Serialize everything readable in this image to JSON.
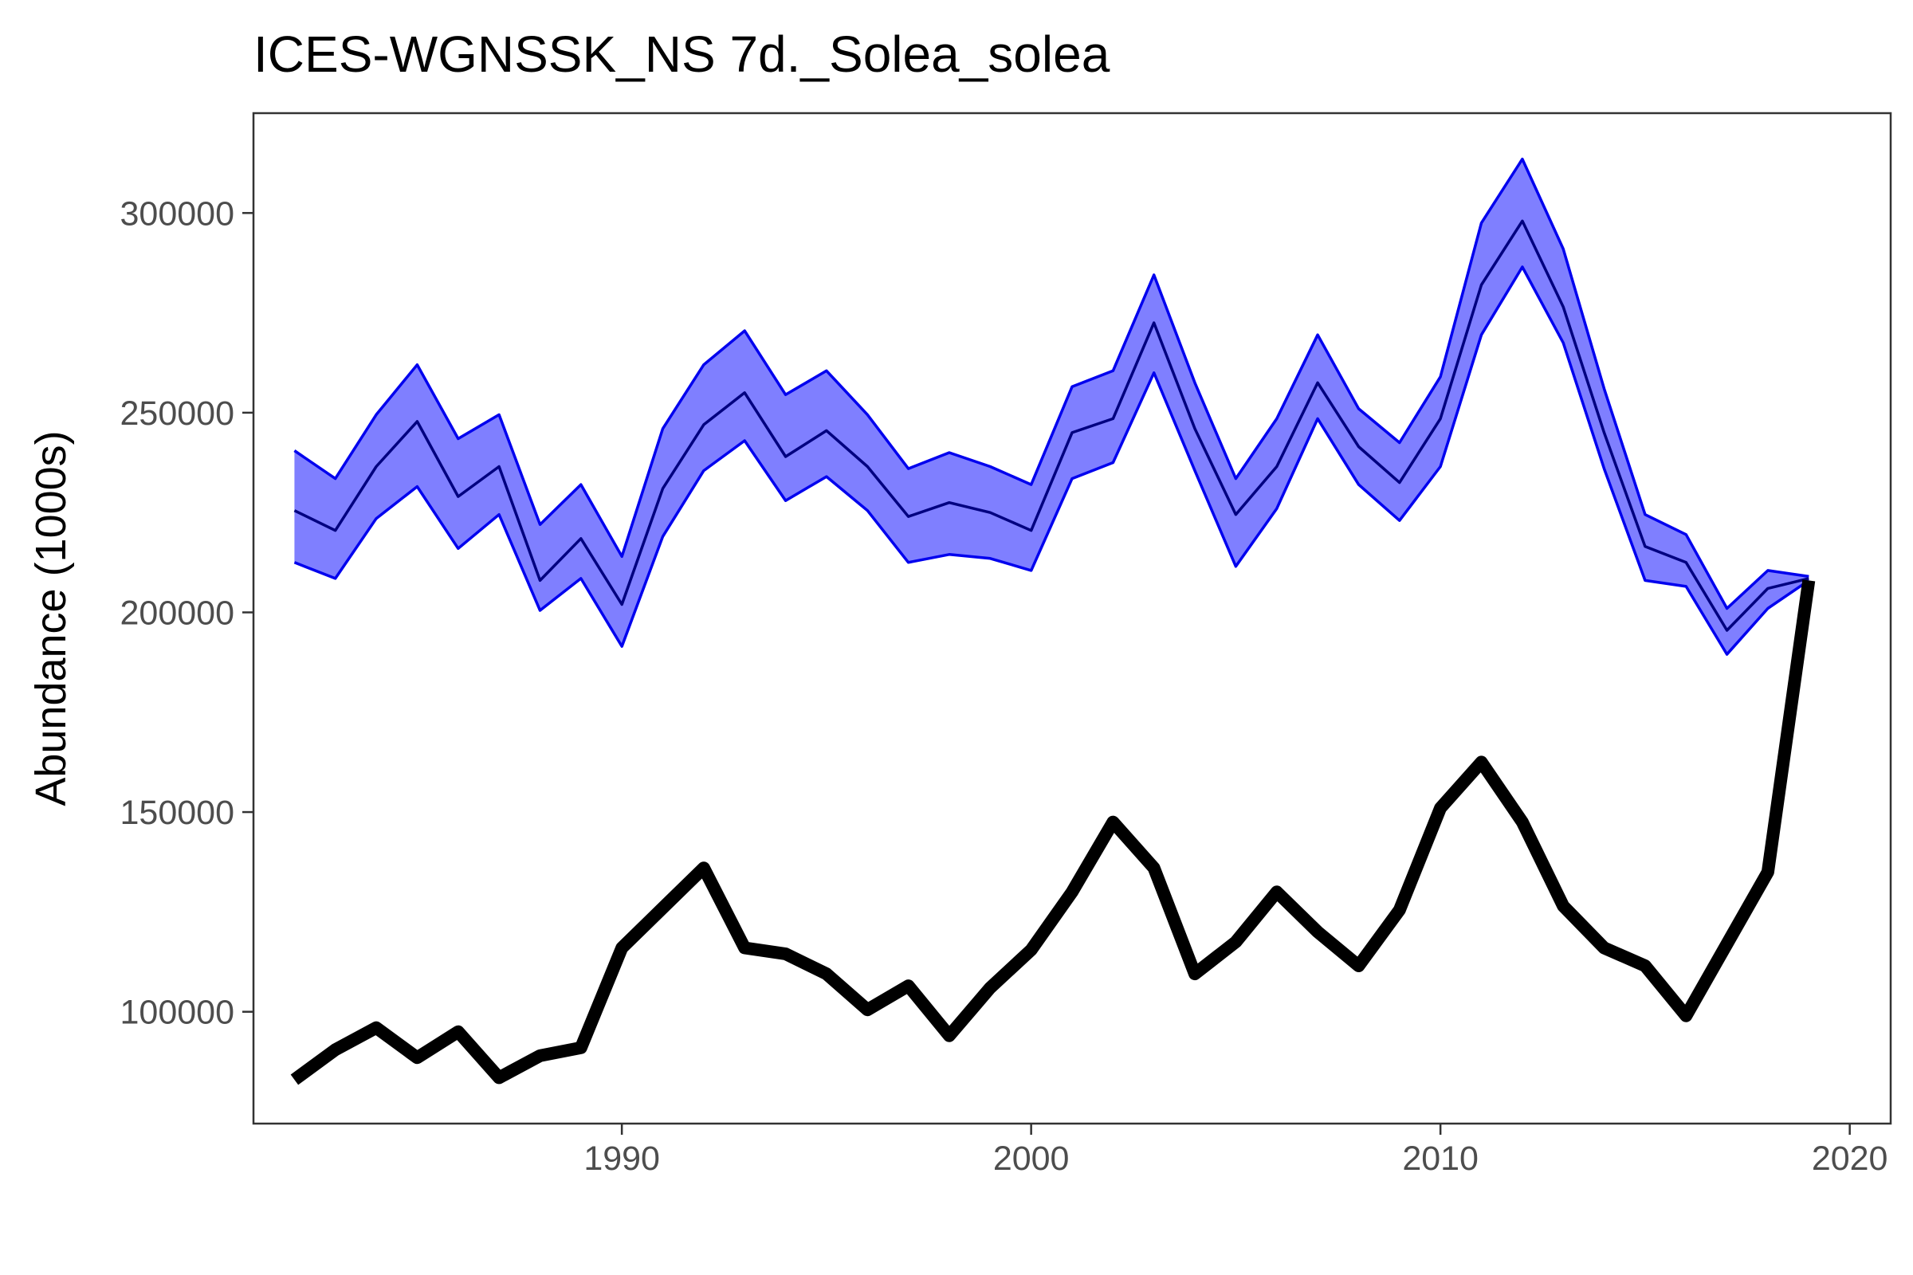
{
  "chart_data": {
    "type": "line",
    "title": "ICES-WGNSSK_NS 7d._Solea_solea",
    "xlabel": "",
    "ylabel": "Abundance (1000s)",
    "xlim": [
      1981,
      2021
    ],
    "ylim": [
      72000,
      325000
    ],
    "xticks": [
      1990,
      2000,
      2010,
      2020
    ],
    "yticks": [
      100000,
      150000,
      200000,
      250000,
      300000
    ],
    "grid": false,
    "legend": "none",
    "x": [
      1982,
      1983,
      1984,
      1985,
      1986,
      1987,
      1988,
      1989,
      1990,
      1991,
      1992,
      1993,
      1994,
      1995,
      1996,
      1997,
      1998,
      1999,
      2000,
      2001,
      2002,
      2003,
      2004,
      2005,
      2006,
      2007,
      2008,
      2009,
      2010,
      2011,
      2012,
      2013,
      2014,
      2015,
      2016,
      2017,
      2018,
      2019
    ],
    "series": [
      {
        "role": "estimate",
        "color": "#000080",
        "values": [
          225500,
          220500,
          236500,
          247800,
          229000,
          236500,
          208000,
          218500,
          202000,
          231000,
          247000,
          255000,
          239000,
          245500,
          236500,
          224000,
          227500,
          225000,
          220500,
          245000,
          248500,
          272500,
          246000,
          224500,
          236500,
          257500,
          241500,
          232500,
          248500,
          282000,
          298000,
          276500,
          245000,
          216500,
          212500,
          195500,
          206000,
          208500
        ]
      },
      {
        "role": "upper",
        "color": "#0000ee",
        "values": [
          240500,
          233500,
          249500,
          262000,
          243500,
          249500,
          222000,
          232000,
          214000,
          246000,
          262000,
          270500,
          254500,
          260500,
          249500,
          236000,
          240000,
          236500,
          232000,
          256500,
          260500,
          284500,
          257500,
          233500,
          248500,
          269500,
          251000,
          242500,
          259000,
          297500,
          313500,
          291000,
          256000,
          224500,
          219500,
          201000,
          210500,
          209000
        ]
      },
      {
        "role": "lower",
        "color": "#0000ee",
        "values": [
          212500,
          208500,
          223500,
          231500,
          216000,
          224500,
          200500,
          208500,
          191500,
          219000,
          235500,
          243000,
          228000,
          234000,
          225500,
          212500,
          214500,
          213500,
          210500,
          233500,
          237500,
          260000,
          235500,
          211500,
          226000,
          248500,
          232000,
          223000,
          236500,
          269500,
          286500,
          267500,
          236000,
          208000,
          206500,
          189500,
          201000,
          208000
        ]
      },
      {
        "role": "survey-index",
        "color": "#000000",
        "values": [
          83000,
          90500,
          96000,
          88500,
          95000,
          83500,
          89000,
          91000,
          116000,
          126000,
          136000,
          116000,
          114500,
          109500,
          100500,
          106500,
          94000,
          106000,
          115500,
          130000,
          147500,
          136000,
          109500,
          117500,
          130000,
          120000,
          111500,
          125500,
          151000,
          162500,
          147500,
          126500,
          116000,
          111500,
          99000,
          117000,
          135000,
          208000
        ]
      }
    ]
  }
}
